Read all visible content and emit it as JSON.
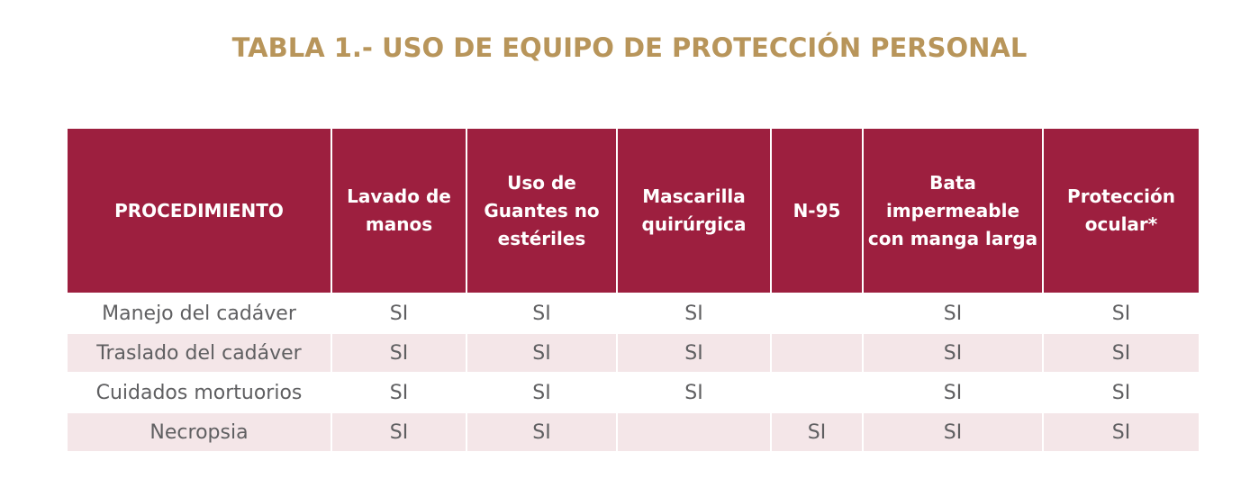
{
  "title": "TABLA 1.- USO DE EQUIPO DE PROTECCIÓN PERSONAL",
  "headers": [
    "PROCEDIMIENTO",
    "Lavado de manos",
    "Uso de Guantes no estériles",
    "Mascarilla quirúrgica",
    "N-95",
    "Bata impermeable con manga larga",
    "Protección ocular*"
  ],
  "rows": [
    [
      "Manejo del cadáver",
      "SI",
      "SI",
      "SI",
      "",
      "SI",
      "SI"
    ],
    [
      "Traslado del cadáver",
      "SI",
      "SI",
      "SI",
      "",
      "SI",
      "SI"
    ],
    [
      "Cuidados mortuorios",
      "SI",
      "SI",
      "SI",
      "",
      "SI",
      "SI"
    ],
    [
      "Necropsia",
      "SI",
      "SI",
      "",
      "SI",
      "SI",
      "SI"
    ]
  ],
  "colors": {
    "header": "#9d1f3f",
    "title": "#b8955a",
    "stripe": "#f4e6e8"
  }
}
